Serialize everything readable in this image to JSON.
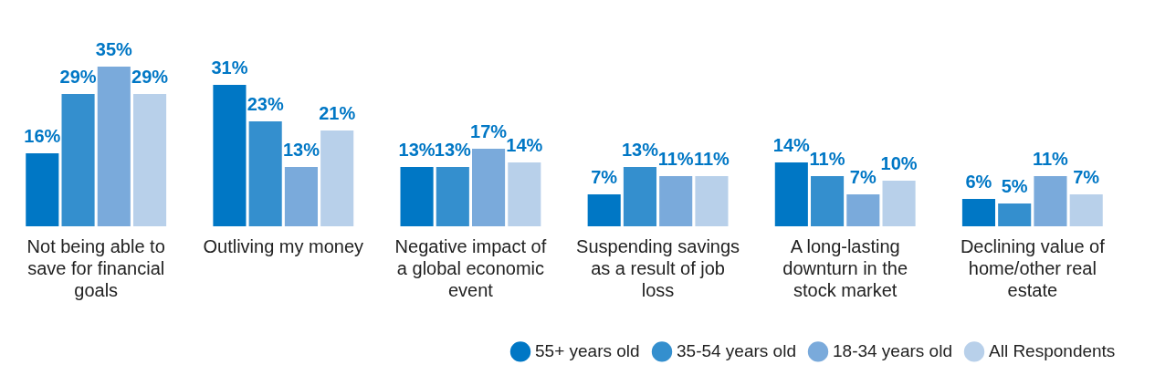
{
  "chart_data": {
    "type": "bar",
    "categories": [
      "Not being able to save for financial goals",
      "Outliving my money",
      "Negative impact of a global economic event",
      "Suspending savings as a result of job loss",
      "A long-lasting downturn in the stock market",
      "Declining value of home/other real estate"
    ],
    "series": [
      {
        "name": "55+ years old",
        "color": "#0077c5",
        "values": [
          16,
          31,
          13,
          7,
          14,
          6
        ],
        "value_labels": [
          "16%",
          "31%",
          "13%",
          "7%",
          "14%",
          "6%"
        ]
      },
      {
        "name": "35-54 years old",
        "color": "#348fce",
        "values": [
          29,
          23,
          13,
          13,
          11,
          5
        ],
        "value_labels": [
          "29%",
          "23%",
          "13%",
          "13%",
          "11%",
          "5%"
        ]
      },
      {
        "name": "18-34 years old",
        "color": "#7aaadb",
        "values": [
          35,
          13,
          17,
          11,
          7,
          11
        ],
        "value_labels": [
          "35%",
          "13%",
          "17%",
          "11%",
          "7%",
          "11%"
        ]
      },
      {
        "name": "All Respondents",
        "color": "#b8d0ea",
        "values": [
          29,
          21,
          14,
          11,
          10,
          7
        ],
        "value_labels": [
          "29%",
          "21%",
          "14%",
          "11%",
          "10%",
          "7%"
        ]
      }
    ],
    "legend": "bottom right"
  }
}
